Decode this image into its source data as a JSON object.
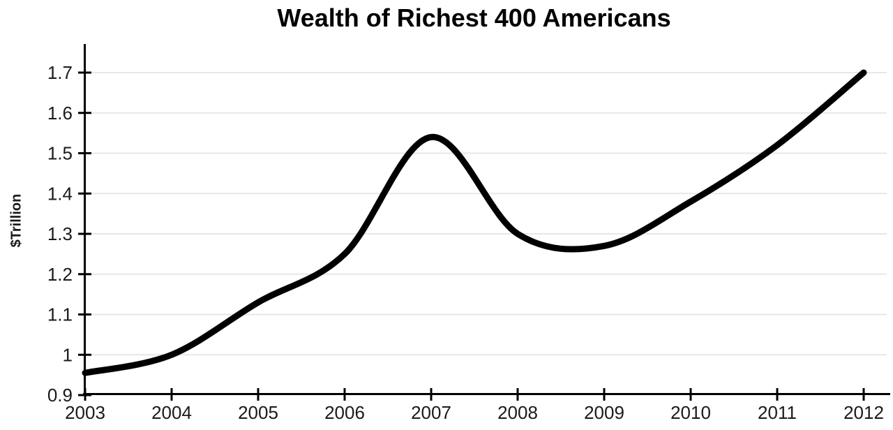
{
  "chart_data": {
    "type": "line",
    "title": "Wealth of Richest 400 Americans",
    "xlabel": "",
    "ylabel": "$Trillion",
    "x": [
      2003,
      2004,
      2005,
      2006,
      2007,
      2008,
      2009,
      2010,
      2011,
      2012
    ],
    "values": [
      0.955,
      1.0,
      1.13,
      1.25,
      1.54,
      1.3,
      1.27,
      1.38,
      1.52,
      1.7
    ],
    "xticks": [
      "2003",
      "2004",
      "2005",
      "2006",
      "2007",
      "2008",
      "2009",
      "2010",
      "2011",
      "2012"
    ],
    "yticks": [
      "0.9",
      "1",
      "1.1",
      "1.2",
      "1.3",
      "1.4",
      "1.5",
      "1.6",
      "1.7"
    ],
    "ytick_values": [
      0.9,
      1.0,
      1.1,
      1.2,
      1.3,
      1.4,
      1.5,
      1.6,
      1.7
    ],
    "xlim": [
      2003,
      2012
    ],
    "ylim": [
      0.9,
      1.77
    ],
    "grid": "horizontal",
    "legend": "none",
    "line_width": 9,
    "colors": {
      "line": "#000000",
      "grid": "#e7e7e7",
      "axis": "#000000",
      "text": "#1a1a1a",
      "background": "#ffffff"
    }
  }
}
